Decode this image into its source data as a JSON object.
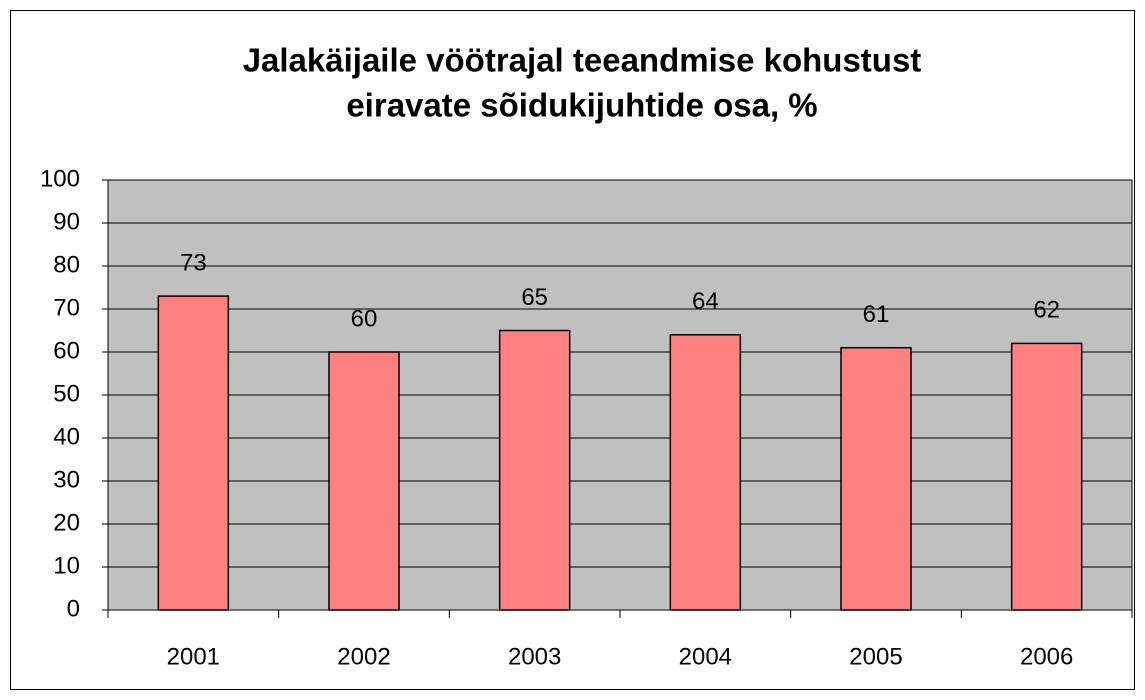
{
  "chart_data": {
    "type": "bar",
    "title": [
      "Jalakäijaile vöötrajal teeandmise kohustust",
      "eiravate sõidukijuhtide osa, %"
    ],
    "categories": [
      "2001",
      "2002",
      "2003",
      "2004",
      "2005",
      "2006"
    ],
    "values": [
      73,
      60,
      65,
      64,
      61,
      62
    ],
    "color": "#ff8080",
    "ylim": [
      0,
      100
    ],
    "yticks": [
      0,
      10,
      20,
      30,
      40,
      50,
      60,
      70,
      80,
      90,
      100
    ],
    "grid": true
  }
}
